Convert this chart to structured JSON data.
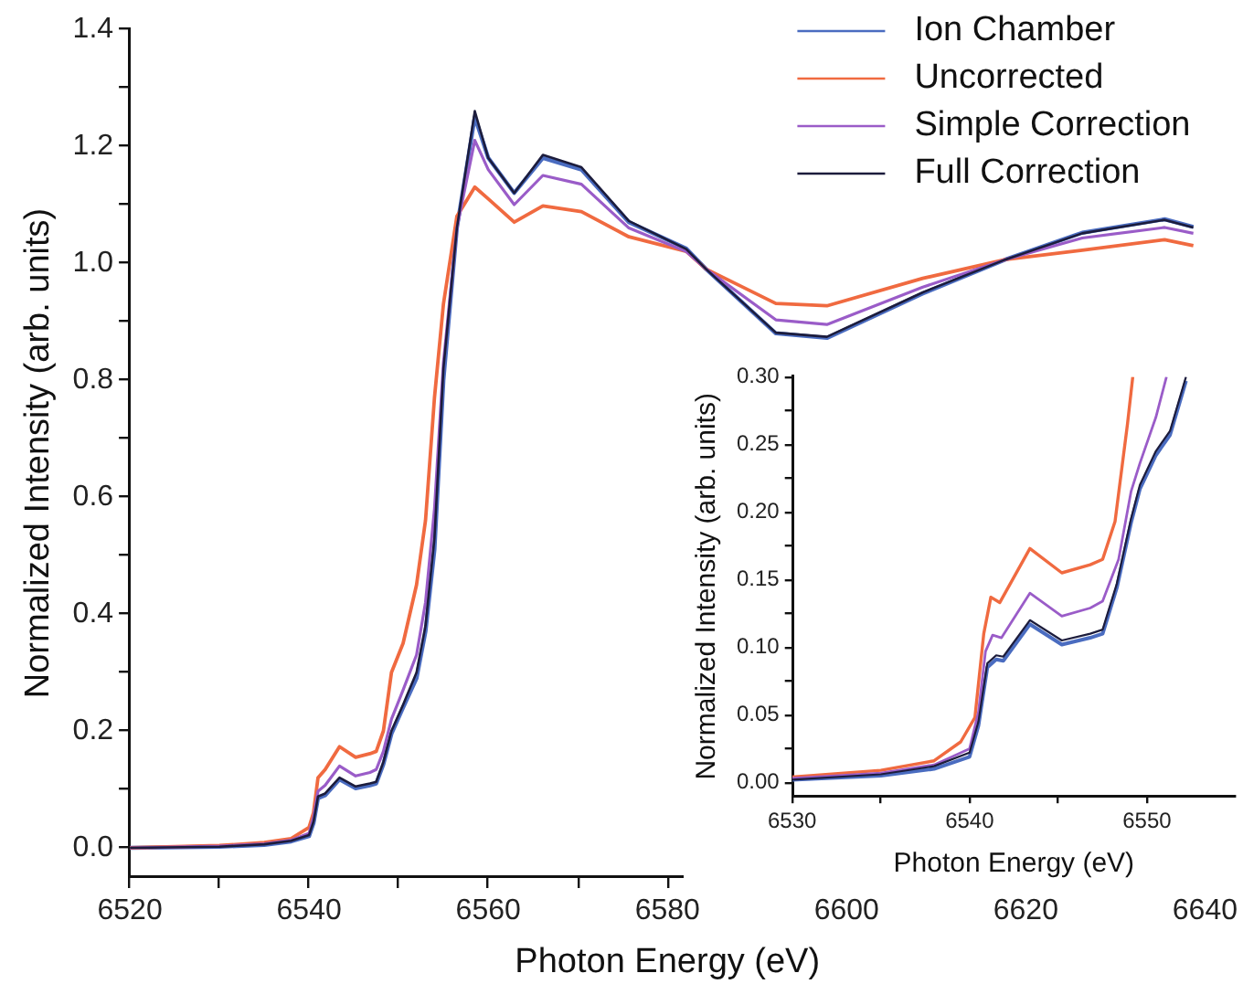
{
  "chart_data": [
    {
      "type": "line",
      "xlabel": "Photon Energy (eV)",
      "ylabel": "Normalized Intensity (arb. units)",
      "xlim": [
        6520,
        6640
      ],
      "ylim": [
        -0.05,
        1.4
      ],
      "xticks": [
        6520,
        {
          "value": 6530,
          "label": null
        },
        6540,
        {
          "value": 6550,
          "label": null
        },
        6560,
        {
          "value": 6570,
          "label": null
        },
        6580,
        {
          "value": 6590,
          "label": null
        },
        6600,
        {
          "value": 6610,
          "label": null
        },
        6620,
        {
          "value": 6630,
          "label": null
        },
        6640
      ],
      "yticks": [
        {
          "value": 0,
          "label": "0.0"
        },
        {
          "value": 0.1,
          "label": null
        },
        0.2,
        {
          "value": 0.3,
          "label": null
        },
        0.4,
        {
          "value": 0.5,
          "label": null
        },
        0.6,
        {
          "value": 0.7,
          "label": null
        },
        0.8,
        {
          "value": 0.9,
          "label": null
        },
        {
          "value": 1,
          "label": "1.0"
        },
        {
          "value": 1.1,
          "label": null
        },
        1.2,
        {
          "value": 1.3,
          "label": null
        },
        1.4
      ],
      "x": [
        6520,
        6530,
        6535,
        6538,
        6540,
        6540.5,
        6541,
        6541.8,
        6543.4,
        6545.2,
        6546.8,
        6547.5,
        6548.3,
        6549.2,
        6550.5,
        6552,
        6553,
        6554,
        6555,
        6556.5,
        6558.5,
        6560,
        6562.9,
        6566.1,
        6570.4,
        6575.7,
        6582.1,
        6584.3,
        6592.1,
        6597.8,
        6608.5,
        6617.7,
        6626.3,
        6635.5,
        6638.7
      ],
      "series": [
        {
          "name": "Ion Chamber",
          "color": "#4a6cc0",
          "values": [
            0,
            0.002,
            0.005,
            0.011,
            0.02,
            0.042,
            0.085,
            0.09,
            0.117,
            0.102,
            0.107,
            0.11,
            0.143,
            0.195,
            0.24,
            0.29,
            0.37,
            0.51,
            0.8,
            1.06,
            1.25,
            1.18,
            1.12,
            1.18,
            1.16,
            1.07,
            1.025,
            0.99,
            0.88,
            0.872,
            0.948,
            1.006,
            1.052,
            1.075,
            1.062
          ]
        },
        {
          "name": "Uncorrected",
          "color": "#f06a40",
          "values": [
            0,
            0.004,
            0.009,
            0.016,
            0.035,
            0.06,
            0.12,
            0.134,
            0.173,
            0.155,
            0.161,
            0.165,
            0.2,
            0.3,
            0.35,
            0.45,
            0.56,
            0.77,
            0.93,
            1.08,
            1.13,
            1.11,
            1.07,
            1.098,
            1.088,
            1.045,
            1.02,
            0.99,
            0.931,
            0.927,
            0.974,
            1.006,
            1.022,
            1.04,
            1.03
          ]
        },
        {
          "name": "Simple Correction",
          "color": "#9a5cc8",
          "values": [
            0,
            0.003,
            0.007,
            0.013,
            0.025,
            0.052,
            0.097,
            0.107,
            0.14,
            0.123,
            0.129,
            0.134,
            0.165,
            0.22,
            0.27,
            0.33,
            0.42,
            0.58,
            0.83,
            1.06,
            1.21,
            1.16,
            1.1,
            1.15,
            1.135,
            1.06,
            1.02,
            0.99,
            0.903,
            0.895,
            0.959,
            1.006,
            1.043,
            1.061,
            1.051
          ]
        },
        {
          "name": "Full Correction",
          "color": "#1c1c3c",
          "values": [
            0,
            0.002,
            0.006,
            0.012,
            0.022,
            0.045,
            0.088,
            0.093,
            0.12,
            0.105,
            0.11,
            0.113,
            0.147,
            0.2,
            0.245,
            0.3,
            0.38,
            0.53,
            0.82,
            1.06,
            1.26,
            1.18,
            1.12,
            1.185,
            1.164,
            1.072,
            1.024,
            0.99,
            0.881,
            0.874,
            0.95,
            1.006,
            1.051,
            1.074,
            1.061
          ]
        }
      ],
      "legend": "top right",
      "grid": false,
      "marker": "none"
    },
    {
      "type": "line",
      "xlabel": "Photon Energy (eV)",
      "ylabel": "Normalized Intensity (arb. units)",
      "xlim": [
        6530,
        6555
      ],
      "ylim": [
        -0.01,
        0.3
      ],
      "xticks": [
        6530,
        {
          "value": 6535,
          "label": null
        },
        6540,
        {
          "value": 6545,
          "label": null
        },
        6550
      ],
      "yticks": [
        {
          "value": 0,
          "label": "0.00"
        },
        {
          "value": 0.025,
          "label": null
        },
        0.05,
        {
          "value": 0.075,
          "label": null
        },
        {
          "value": 0.1,
          "label": "0.10"
        },
        {
          "value": 0.125,
          "label": null
        },
        0.15,
        {
          "value": 0.175,
          "label": null
        },
        {
          "value": 0.2,
          "label": "0.20"
        },
        {
          "value": 0.225,
          "label": null
        },
        0.25,
        {
          "value": 0.275,
          "label": null
        },
        {
          "value": 0.3,
          "label": "0.30"
        }
      ],
      "series": [
        {
          "color": "#4a6cc0",
          "x": [
            6530,
            6535,
            6538,
            6540,
            6540.5,
            6541,
            6541.5,
            6541.9,
            6543.4,
            6545.2,
            6546.8,
            6547.5,
            6548.3,
            6549.1,
            6549.6,
            6550.5,
            6551.3,
            6552.2
          ],
          "values": [
            0.002,
            0.005,
            0.01,
            0.019,
            0.042,
            0.085,
            0.091,
            0.09,
            0.117,
            0.102,
            0.107,
            0.11,
            0.144,
            0.192,
            0.217,
            0.242,
            0.257,
            0.297
          ]
        },
        {
          "color": "#f06a40",
          "x": [
            6530,
            6535,
            6538,
            6539.5,
            6540.3,
            6540.8,
            6541.2,
            6541.7,
            6543.4,
            6545.2,
            6546.8,
            6547.5,
            6548.2,
            6548.9,
            6549.2
          ],
          "values": [
            0.004,
            0.009,
            0.016,
            0.03,
            0.048,
            0.11,
            0.137,
            0.133,
            0.173,
            0.155,
            0.161,
            0.165,
            0.193,
            0.265,
            0.3
          ]
        },
        {
          "color": "#9a5cc8",
          "x": [
            6530,
            6535,
            6538,
            6540,
            6540.5,
            6540.9,
            6541.3,
            6541.8,
            6543.4,
            6545.2,
            6546.8,
            6547.5,
            6548.4,
            6549.1,
            6549.6,
            6550.5,
            6551.1
          ],
          "values": [
            0.003,
            0.007,
            0.013,
            0.025,
            0.052,
            0.097,
            0.109,
            0.107,
            0.14,
            0.123,
            0.129,
            0.134,
            0.165,
            0.215,
            0.236,
            0.27,
            0.3
          ]
        },
        {
          "color": "#1c1c3c",
          "x": [
            6530,
            6535,
            6538,
            6540,
            6540.5,
            6541,
            6541.5,
            6541.9,
            6543.4,
            6545.2,
            6546.8,
            6547.5,
            6548.3,
            6549.1,
            6549.6,
            6550.5,
            6551.3,
            6552.2
          ],
          "values": [
            0.002,
            0.006,
            0.012,
            0.022,
            0.045,
            0.088,
            0.094,
            0.093,
            0.12,
            0.105,
            0.11,
            0.113,
            0.147,
            0.195,
            0.22,
            0.245,
            0.26,
            0.3
          ]
        }
      ],
      "legend": false,
      "grid": false,
      "marker": "none"
    }
  ]
}
